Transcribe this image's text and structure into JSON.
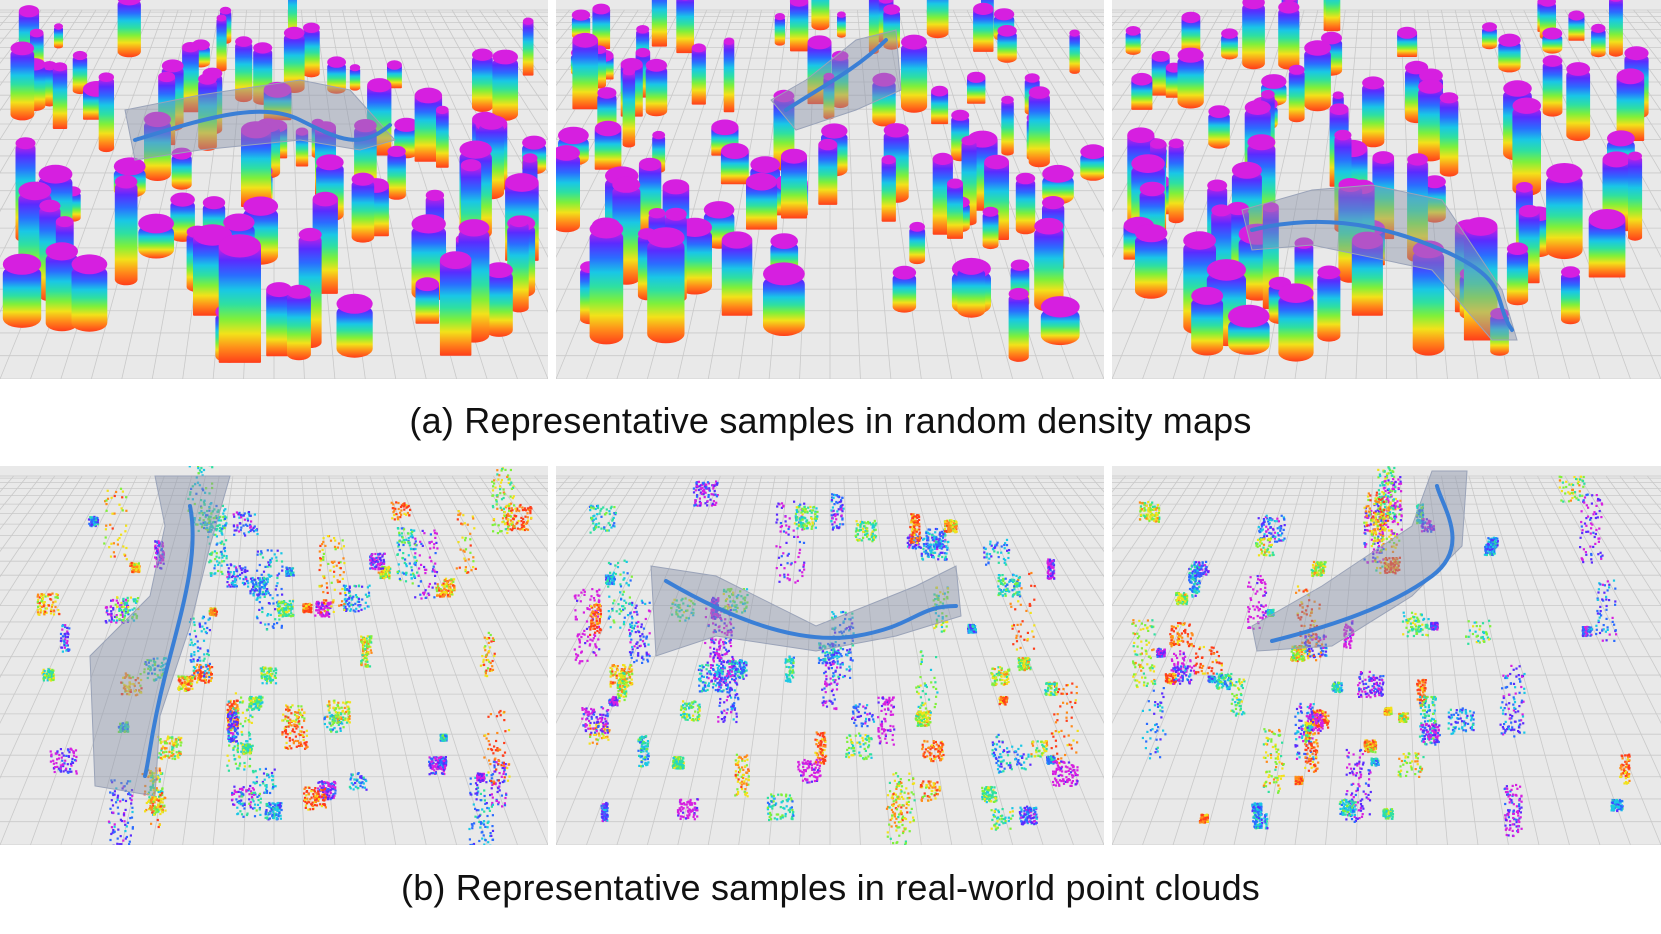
{
  "figure": {
    "caption_a": "(a) Representative samples in random density maps",
    "caption_b": "(b) Representative samples in real-world point clouds",
    "row_a": {
      "panels": [
        {
          "name": "random-map-1",
          "style": "columns"
        },
        {
          "name": "random-map-2",
          "style": "columns"
        },
        {
          "name": "random-map-3",
          "style": "columns"
        }
      ]
    },
    "row_b": {
      "panels": [
        {
          "name": "pointcloud-1",
          "style": "scatter"
        },
        {
          "name": "pointcloud-2",
          "style": "scatter"
        },
        {
          "name": "pointcloud-3",
          "style": "scatter"
        }
      ]
    },
    "colors": {
      "background": "#e9e9e9",
      "grid": "#c9c9c9",
      "trajectory": "#3a7fd6",
      "corridor": "#8a93a8",
      "height_top": "#d61fe0",
      "height_palette": [
        "#d61fe0",
        "#5a2bff",
        "#2b6cff",
        "#19c7e6",
        "#2fe0a0",
        "#7ff03a",
        "#f2e21a",
        "#ff8a1a",
        "#ff3d1a"
      ]
    }
  }
}
